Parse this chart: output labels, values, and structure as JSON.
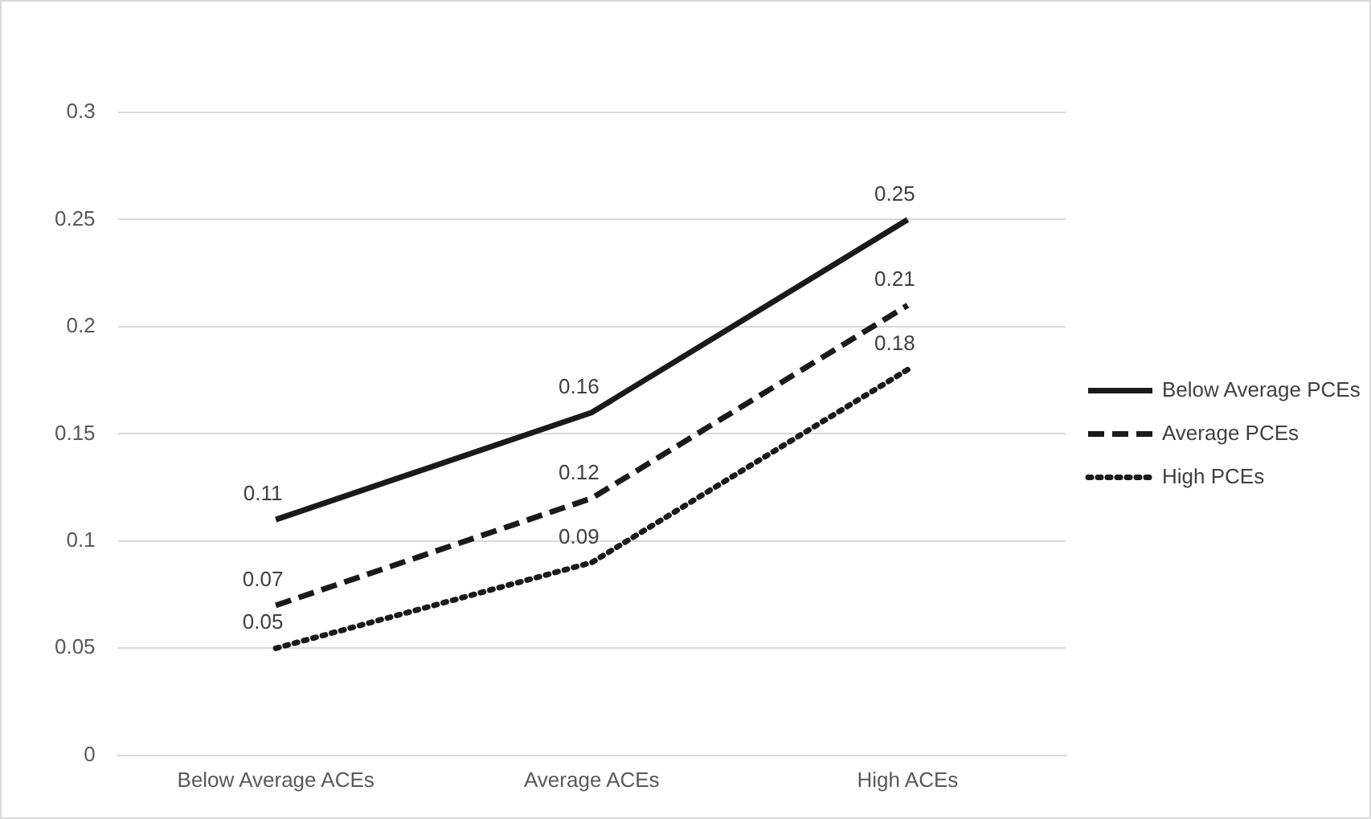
{
  "chart_data": {
    "type": "line",
    "categories": [
      "Below Average ACEs",
      "Average ACEs",
      "High ACEs"
    ],
    "series": [
      {
        "name": "Below Average PCEs",
        "color": "#1a1a1a",
        "line_style": "solid",
        "values": [
          0.11,
          0.16,
          0.25
        ]
      },
      {
        "name": "Average PCEs",
        "color": "#1a1a1a",
        "line_style": "dashed",
        "values": [
          0.07,
          0.12,
          0.21
        ]
      },
      {
        "name": "High PCEs",
        "color": "#1a1a1a",
        "line_style": "dotted",
        "values": [
          0.05,
          0.09,
          0.18
        ]
      }
    ],
    "ylim": [
      0,
      0.3
    ],
    "yticks": [
      0,
      0.05,
      0.1,
      0.15,
      0.2,
      0.25,
      0.3
    ],
    "grid": "y",
    "legend": "right",
    "data_labels": true,
    "marker": "none"
  }
}
